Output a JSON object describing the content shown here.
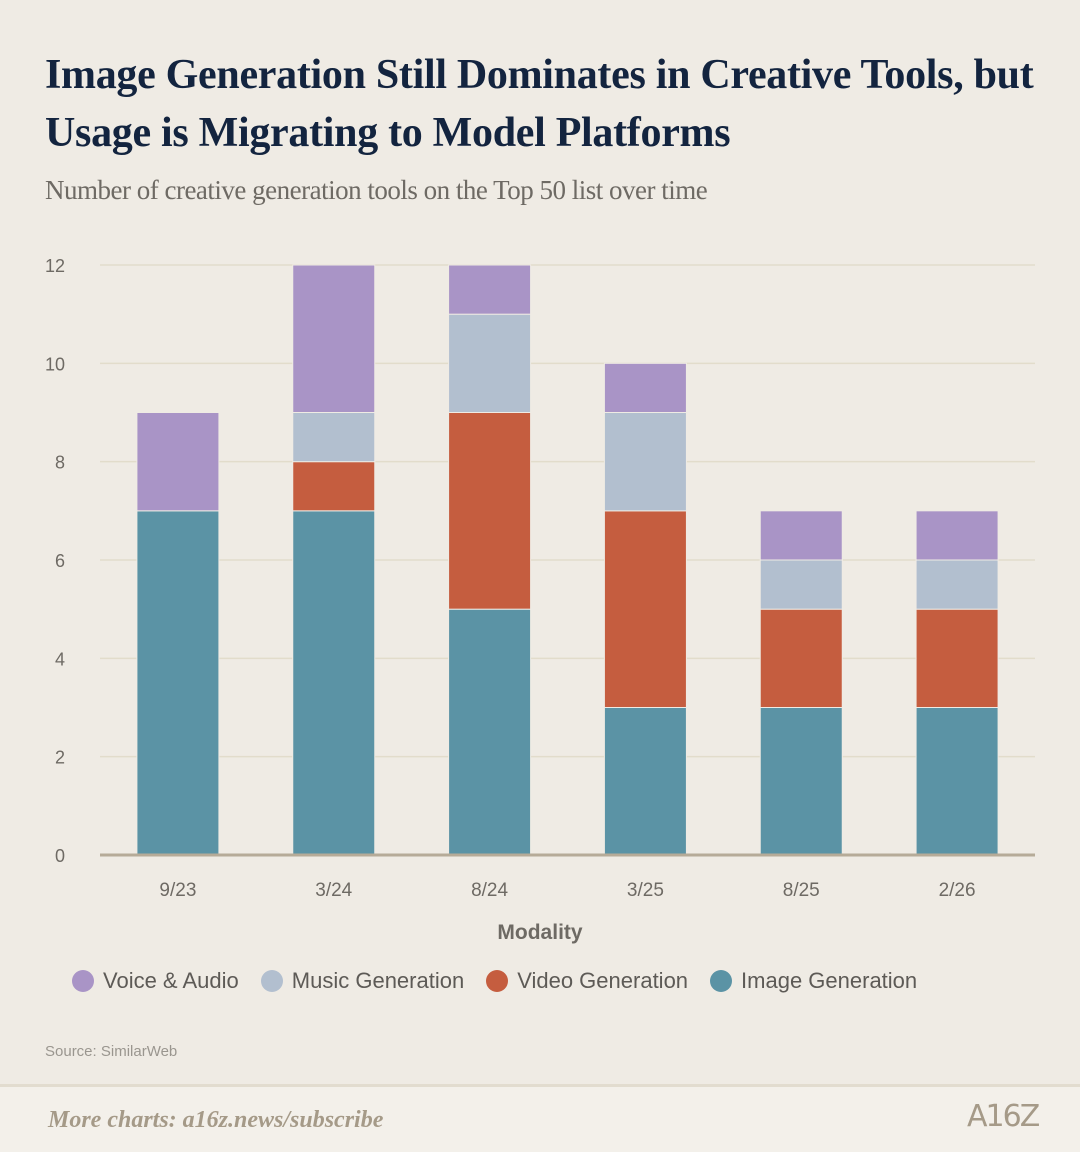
{
  "title": "Image Generation Still Dominates in Creative Tools, but Usage is Migrating to Model Platforms",
  "subtitle": "Number of creative generation tools on the Top 50 list over time",
  "source": "Source: SimilarWeb",
  "footer": {
    "more": "More charts: a16z.news/subscribe",
    "logo": "A16Z"
  },
  "chart_data": {
    "type": "bar",
    "stacked": true,
    "categories": [
      "9/23",
      "3/24",
      "8/24",
      "3/25",
      "8/25",
      "2/26"
    ],
    "xlabel": "Modality",
    "ylabel": "",
    "ylim": [
      0,
      12
    ],
    "yticks": [
      0,
      2,
      4,
      6,
      8,
      10,
      12
    ],
    "grid": true,
    "legend": "bottom",
    "series": [
      {
        "name": "Image Generation",
        "color": "#5b93a5",
        "values": [
          7,
          7,
          5,
          3,
          3,
          3
        ]
      },
      {
        "name": "Video Generation",
        "color": "#c55d3f",
        "values": [
          0,
          1,
          4,
          4,
          2,
          2
        ]
      },
      {
        "name": "Music Generation",
        "color": "#b2bfcf",
        "values": [
          0,
          1,
          2,
          2,
          1,
          1
        ]
      },
      {
        "name": "Voice & Audio",
        "color": "#a994c6",
        "values": [
          2,
          3,
          1,
          1,
          1,
          1
        ]
      }
    ],
    "legend_order": [
      "Voice & Audio",
      "Music Generation",
      "Video Generation",
      "Image Generation"
    ]
  }
}
